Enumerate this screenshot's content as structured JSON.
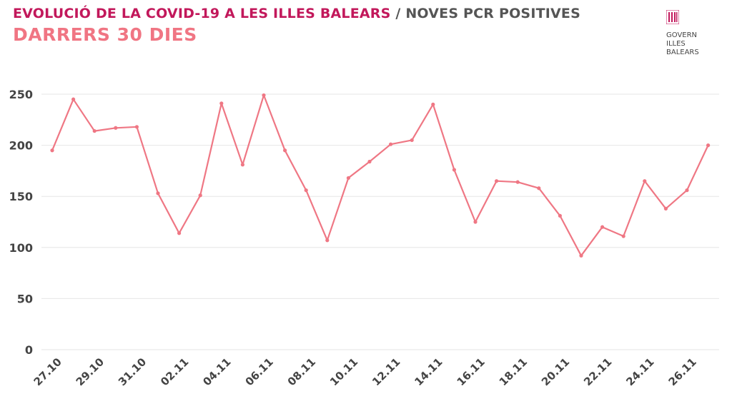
{
  "header": {
    "title_main": "EVOLUCIÓ DE LA COVID-19 A LES ILLES BALEARS",
    "title_sep": "/",
    "title_sub": "NOVES PCR POSITIVES",
    "subtitle": "DARRERS 30 DIES"
  },
  "logo": {
    "line1": "GOVERN",
    "line2": "ILLES",
    "line3": "BALEARS",
    "icon": "govern-illes-balears-logo-icon"
  },
  "colors": {
    "title_main": "#c2185b",
    "title_sub": "#555555",
    "subtitle": "#f07583",
    "series": "#ef7784",
    "grid": "#e6e6e6",
    "axis": "#444444"
  },
  "chart_data": {
    "type": "line",
    "title": "EVOLUCIÓ DE LA COVID-19 A LES ILLES BALEARS / NOVES PCR POSITIVES",
    "subtitle": "DARRERS 30 DIES",
    "xlabel": "",
    "ylabel": "",
    "x": [
      "27.10",
      "28.10",
      "29.10",
      "30.10",
      "31.10",
      "01.11",
      "02.11",
      "03.11",
      "04.11",
      "05.11",
      "06.11",
      "07.11",
      "08.11",
      "09.11",
      "10.11",
      "11.11",
      "12.11",
      "13.11",
      "14.11",
      "15.11",
      "16.11",
      "17.11",
      "18.11",
      "19.11",
      "20.11",
      "21.11",
      "22.11",
      "23.11",
      "24.11",
      "25.11",
      "26.11",
      "27.11"
    ],
    "x_tick_labels": [
      "27.10",
      "29.10",
      "31.10",
      "02.11",
      "04.11",
      "06.11",
      "08.11",
      "10.11",
      "12.11",
      "14.11",
      "16.11",
      "18.11",
      "20.11",
      "22.11",
      "24.11",
      "26.11"
    ],
    "series": [
      {
        "values": [
          195,
          245,
          214,
          217,
          218,
          153,
          114,
          151,
          241,
          181,
          249,
          195,
          156,
          107,
          168,
          184,
          201,
          205,
          240,
          176,
          125,
          165,
          164,
          158,
          131,
          92,
          120,
          111,
          165,
          138,
          156,
          200
        ]
      }
    ],
    "ylim": [
      0,
      250
    ],
    "y_ticks": [
      0,
      50,
      100,
      150,
      200,
      250
    ],
    "grid": true,
    "legend": "none"
  }
}
